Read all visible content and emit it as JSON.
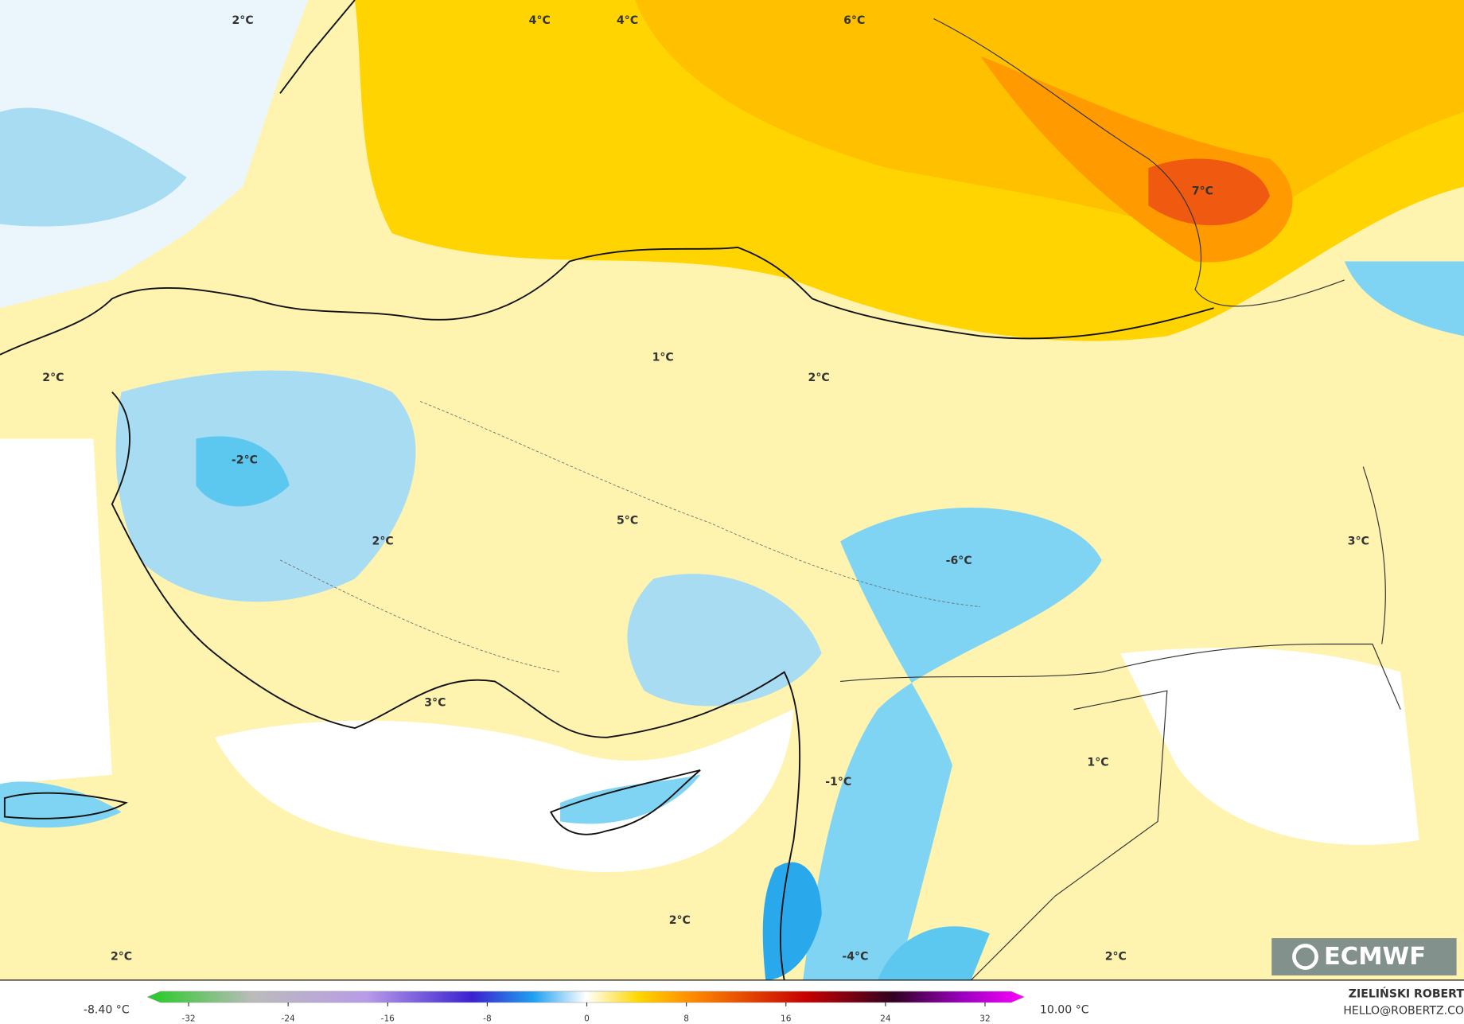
{
  "map_labels": [
    "2°C",
    "4°C",
    "4°C",
    "6°C",
    "7°C",
    "1°C",
    "2°C",
    "2°C",
    "-2°C",
    "5°C",
    "2°C",
    "3°C",
    "-6°C",
    "3°C",
    "1°C",
    "-1°C",
    "2°C",
    "2°C",
    "-4°C",
    "2°C"
  ],
  "legend": {
    "min_label": "-8.40 °C",
    "max_label": "10.00 °C",
    "ticks": [
      -32,
      -24,
      -16,
      -8,
      0,
      8,
      16,
      24,
      32
    ]
  },
  "logo": "ECMWF",
  "author": "ZIELIŃSKI ROBERT",
  "contact": "HELLO@ROBERTZ.CO"
}
